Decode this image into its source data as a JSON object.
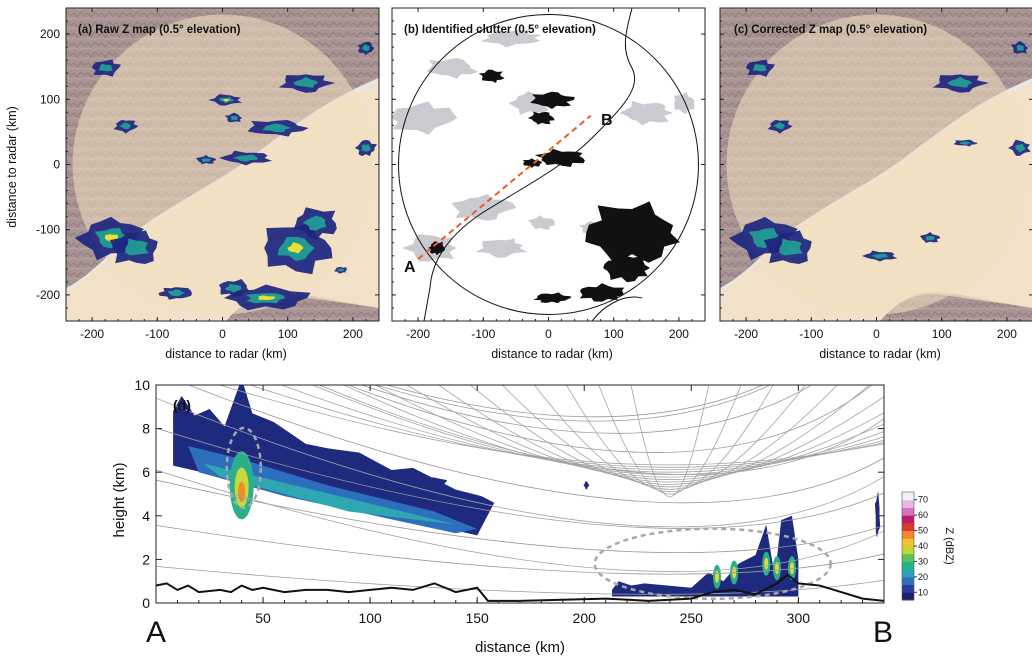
{
  "colors": {
    "terrain": "#a89593",
    "sea": "#f3dfbf",
    "echo_low": "#1d2580",
    "echo_mid": "#20aa96",
    "echo_high": "#e8e032",
    "clutter": "#111111",
    "weather_gray": "#c9cbd0",
    "transect": "#ee5a2a",
    "circle_gray": "#a8a8a8"
  },
  "panels": [
    {
      "title": "(a) Raw Z map (0.5° elevation)",
      "kind": "raw",
      "xlabel": "distance to radar (km)",
      "ylabel": "distance to radar (km)"
    },
    {
      "title": "(b) Identified clutter (0.5° elevation)",
      "kind": "clutter",
      "xlabel": "distance to radar (km)",
      "marker_a": "A",
      "marker_b": "B"
    },
    {
      "title": "(c) Corrected Z map (0.5° elevation)",
      "kind": "corrected",
      "xlabel": "distance to radar (km)"
    }
  ],
  "map_axes": {
    "x_ticks": [
      -200,
      -100,
      0,
      100,
      200
    ],
    "y_ticks": [
      200,
      100,
      0,
      -100,
      -200
    ],
    "xlim": [
      -240,
      240
    ],
    "ylim": [
      -240,
      240
    ],
    "radar_range_km": 230
  },
  "chart_data": {
    "type": "area",
    "panel_label": "(d)",
    "xlabel": "distance (km)",
    "ylabel": "height (km)",
    "xlim": [
      0,
      340
    ],
    "ylim": [
      0,
      10
    ],
    "x_ticks": [
      50,
      100,
      150,
      200,
      250,
      300
    ],
    "y_ticks": [
      0,
      2,
      4,
      6,
      8,
      10
    ],
    "start_label": "A",
    "end_label": "B",
    "radar_position_km": 240,
    "colorbar": {
      "label": "Z (dBZ)",
      "ticks": [
        10,
        20,
        30,
        40,
        50,
        60,
        70
      ],
      "colors": [
        "#1d1f6b",
        "#283b9e",
        "#2f6fc0",
        "#2aa3b8",
        "#25b48a",
        "#5cc25a",
        "#c3d636",
        "#f2c230",
        "#f08a2c",
        "#d93a2a",
        "#c0186b",
        "#d86fc0",
        "#e9b7e2",
        "#f4f2f4"
      ]
    },
    "terrain_profile": {
      "x": [
        0,
        5,
        10,
        15,
        20,
        30,
        35,
        40,
        45,
        50,
        60,
        70,
        80,
        90,
        100,
        110,
        120,
        130,
        140,
        150,
        155,
        170,
        190,
        210,
        230,
        250,
        260,
        270,
        280,
        290,
        295,
        300,
        310,
        320,
        330,
        340
      ],
      "y": [
        0.8,
        0.9,
        0.6,
        0.8,
        0.5,
        0.6,
        0.5,
        0.8,
        0.6,
        0.7,
        0.5,
        0.6,
        0.6,
        0.5,
        0.6,
        0.7,
        0.6,
        0.9,
        0.5,
        0.7,
        0.1,
        0.1,
        0.15,
        0.2,
        0.1,
        0.2,
        0.5,
        0.6,
        0.4,
        0.9,
        1.3,
        0.9,
        0.8,
        0.5,
        0.2,
        0.1
      ]
    },
    "beam_heights_at_ends": [
      0.6,
      1.3,
      2.0,
      2.8,
      3.6,
      4.5,
      5.5,
      6.6,
      7.8,
      9.2
    ]
  }
}
